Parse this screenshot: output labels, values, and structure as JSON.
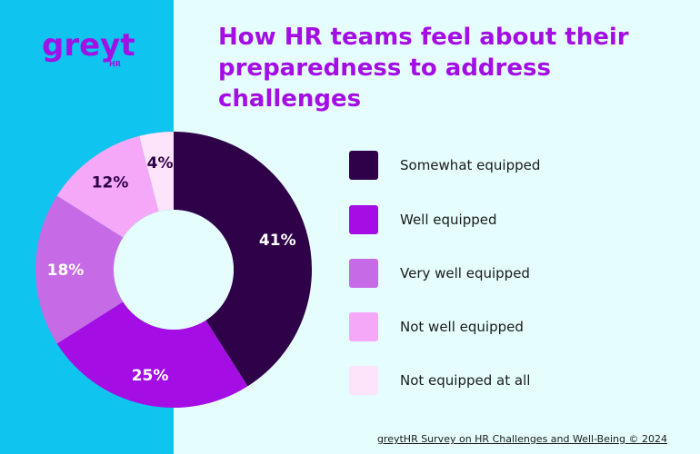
{
  "brand": {
    "logo_text": "greyt",
    "logo_subtext": "HR"
  },
  "header": {
    "title": "How HR teams feel about their preparedness to address challenges"
  },
  "footer": {
    "source": "greytHR Survey on HR Challenges and Well-Being © 2024"
  },
  "colors": {
    "left_panel": "#0fc4ee",
    "background": "#e6fdfd",
    "title": "#a40ee4"
  },
  "chart_data": {
    "type": "pie",
    "style": "donut",
    "legend_placement": "right",
    "slices": [
      {
        "label": "Somewhat equipped",
        "value": 41,
        "display": "41%",
        "color": "#2e0148"
      },
      {
        "label": "Well equipped",
        "value": 25,
        "display": "25%",
        "color": "#a40ee4"
      },
      {
        "label": "Very well equipped",
        "value": 18,
        "display": "18%",
        "color": "#c76ae6"
      },
      {
        "label": "Not well equipped",
        "value": 12,
        "display": "12%",
        "color": "#f5a8f8"
      },
      {
        "label": "Not equipped at all",
        "value": 4,
        "display": "4%",
        "color": "#fde4fb"
      }
    ]
  }
}
